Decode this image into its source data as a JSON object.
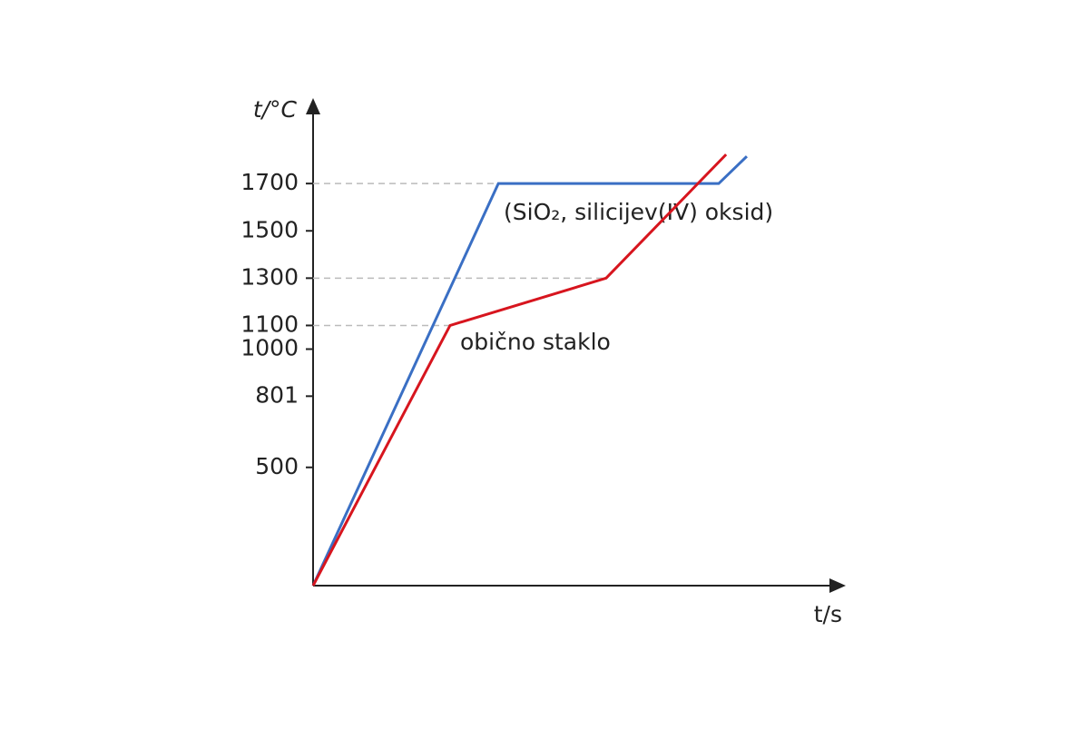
{
  "chart_data": {
    "type": "line",
    "y_label": "t/°C",
    "x_label": "t/s",
    "xlim": [
      0,
      100
    ],
    "ylim": [
      0,
      2000
    ],
    "yticks": [
      500,
      801,
      1000,
      1100,
      1300,
      1500,
      1700
    ],
    "guide_lines": [
      1700,
      1300,
      1100
    ],
    "series": [
      {
        "name": "(SiO₂, silicijev(IV) oksid)",
        "color": "#3a6fc4",
        "x": [
          0,
          34.9,
          76.4,
          81.7
        ],
        "values": [
          0,
          1700,
          1700,
          1815
        ]
      },
      {
        "name": "obično staklo",
        "color": "#d7151e",
        "x": [
          0,
          25.8,
          55.2,
          77.8
        ],
        "values": [
          0,
          1100,
          1300,
          1823
        ]
      }
    ]
  }
}
